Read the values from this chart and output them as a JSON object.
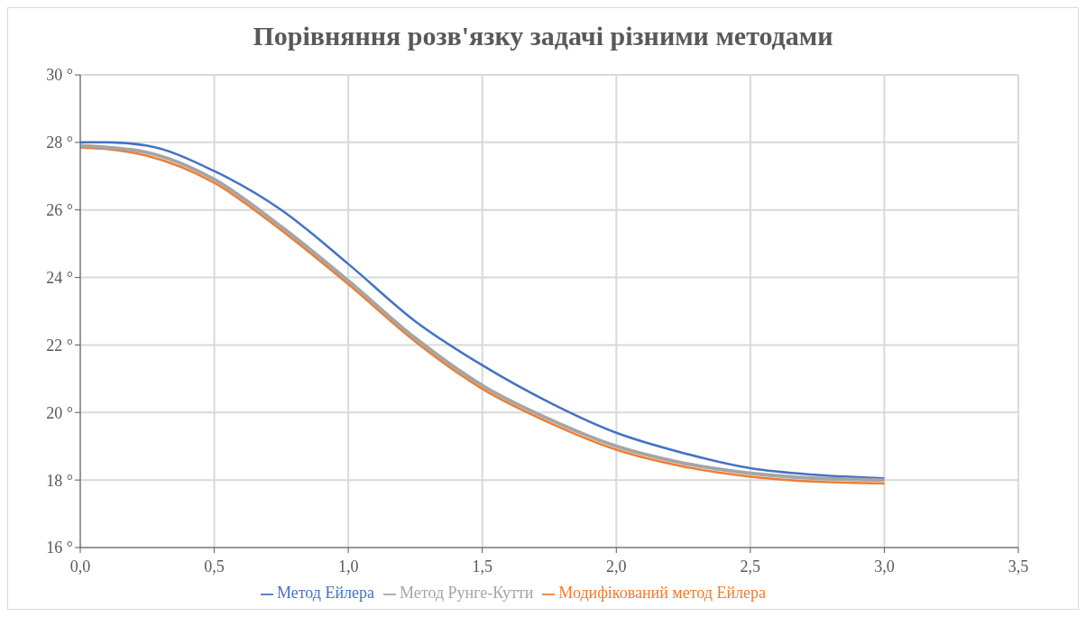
{
  "chart_data": {
    "type": "line",
    "title": "Порівняння розв'язку задачі різними методами",
    "x": [
      0,
      0.1,
      0.25,
      0.5,
      0.75,
      1.0,
      1.25,
      1.5,
      1.75,
      2.0,
      2.25,
      2.5,
      2.75,
      3.0
    ],
    "series": [
      {
        "name": "Метод Ейлера",
        "color": "#4472c4",
        "values": [
          28.0,
          28.0,
          27.9,
          27.15,
          26.0,
          24.4,
          22.7,
          21.4,
          20.3,
          19.4,
          18.8,
          18.35,
          18.15,
          18.05
        ]
      },
      {
        "name": "Модифікований метод Ейлера",
        "color": "#ed7d31",
        "values": [
          27.85,
          27.8,
          27.6,
          26.8,
          25.4,
          23.8,
          22.1,
          20.7,
          19.7,
          18.9,
          18.4,
          18.1,
          17.95,
          17.9
        ]
      },
      {
        "name": "Метод Рунге-Кутти",
        "color": "#a5a5a5",
        "values": [
          27.9,
          27.85,
          27.7,
          26.9,
          25.5,
          23.9,
          22.2,
          20.8,
          19.8,
          19.0,
          18.5,
          18.2,
          18.05,
          18.0
        ]
      }
    ],
    "xlim": [
      0,
      3.5
    ],
    "xticks": [
      {
        "value": 0,
        "label": "0,0"
      },
      {
        "value": 0.5,
        "label": "0,5"
      },
      {
        "value": 1,
        "label": "1,0"
      },
      {
        "value": 1.5,
        "label": "1,5"
      },
      {
        "value": 2,
        "label": "2,0"
      },
      {
        "value": 2.5,
        "label": "2,5"
      },
      {
        "value": 3,
        "label": "3,0"
      },
      {
        "value": 3.5,
        "label": "3,5"
      }
    ],
    "ylim": [
      16,
      30
    ],
    "yticks": [
      {
        "value": 16,
        "label": "16 °"
      },
      {
        "value": 18,
        "label": "18 °"
      },
      {
        "value": 20,
        "label": "20 °"
      },
      {
        "value": 22,
        "label": "22 °"
      },
      {
        "value": 24,
        "label": "24 °"
      },
      {
        "value": 26,
        "label": "26 °"
      },
      {
        "value": 28,
        "label": "28 °"
      },
      {
        "value": 30,
        "label": "30 °"
      }
    ],
    "grid": true,
    "legend": "bottom",
    "marker": "none",
    "line_style": "solid"
  }
}
